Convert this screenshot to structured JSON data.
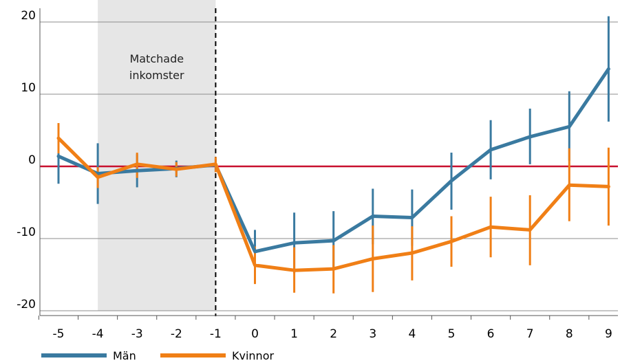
{
  "chart_data": {
    "type": "line",
    "x": [
      -5,
      -4,
      -3,
      -2,
      -1,
      0,
      1,
      2,
      3,
      4,
      5,
      6,
      7,
      8,
      9
    ],
    "ylim": [
      -20,
      20
    ],
    "yticks": [
      20,
      10,
      0,
      -10,
      -20
    ],
    "grid": true,
    "zero_line_color": "#c8102e",
    "event_line_x": -1,
    "shaded_region": {
      "x_start": -4,
      "x_end": -1,
      "label_lines": [
        "Matchade",
        "inkomster"
      ],
      "color": "#e6e6e6"
    },
    "legend_position": "bottom-left",
    "series": [
      {
        "name": "Män",
        "color": "#3a7aa0",
        "values": [
          1.4,
          -1.0,
          -0.6,
          -0.3,
          0.2,
          -11.8,
          -10.6,
          -10.3,
          -6.9,
          -7.1,
          -2.0,
          2.3,
          4.1,
          5.5,
          13.5
        ],
        "ci_low": [
          -2.4,
          -5.2,
          -2.9,
          -1.5,
          -0.8,
          -14.6,
          -14.8,
          -14.4,
          -10.8,
          -11.0,
          -6.0,
          -1.8,
          0.3,
          0.8,
          6.2
        ],
        "ci_high": [
          5.0,
          3.2,
          1.7,
          0.8,
          1.1,
          -8.8,
          -6.4,
          -6.2,
          -3.1,
          -3.2,
          1.9,
          6.4,
          8.0,
          10.4,
          20.8
        ]
      },
      {
        "name": "Kvinnor",
        "color": "#f07f16",
        "values": [
          3.9,
          -1.5,
          0.3,
          -0.4,
          0.3,
          -13.7,
          -14.4,
          -14.2,
          -12.8,
          -12.0,
          -10.4,
          -8.4,
          -8.8,
          -2.6,
          -2.8
        ],
        "ci_low": [
          1.8,
          -3.0,
          -1.6,
          -1.4,
          -0.8,
          -16.3,
          -17.5,
          -17.6,
          -17.4,
          -15.8,
          -13.9,
          -12.6,
          -13.7,
          -7.6,
          -8.2
        ],
        "ci_high": [
          6.0,
          -0.1,
          1.9,
          0.6,
          1.3,
          -11.1,
          -11.2,
          -10.9,
          -8.2,
          -8.3,
          -6.9,
          -4.2,
          -4.0,
          2.5,
          2.6
        ]
      }
    ]
  }
}
